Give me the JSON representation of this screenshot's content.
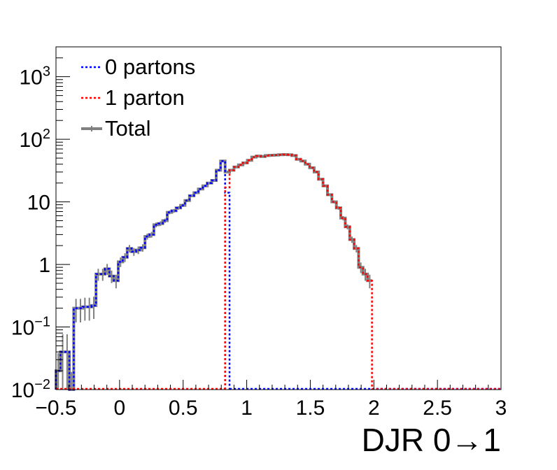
{
  "chart_data": {
    "type": "line",
    "step": true,
    "xlabel": "DJR 0→1",
    "ylabel": "",
    "xlim": [
      -0.5,
      3
    ],
    "ylim": [
      0.01,
      3000
    ],
    "y_scale": "log",
    "grid": false,
    "legend_position": "top-left",
    "x_ticks": [
      {
        "value": -0.5,
        "label": "−0.5"
      },
      {
        "value": 0,
        "label": "0"
      },
      {
        "value": 0.5,
        "label": "0.5"
      },
      {
        "value": 1,
        "label": "1"
      },
      {
        "value": 1.5,
        "label": "1.5"
      },
      {
        "value": 2,
        "label": "2"
      },
      {
        "value": 2.5,
        "label": "2.5"
      },
      {
        "value": 3,
        "label": "3"
      }
    ],
    "y_ticks": [
      {
        "value": 0.01,
        "base": "10",
        "exp": "−2"
      },
      {
        "value": 0.1,
        "base": "10",
        "exp": "−1"
      },
      {
        "value": 1,
        "base": "1",
        "exp": ""
      },
      {
        "value": 10,
        "base": "10",
        "exp": ""
      },
      {
        "value": 100,
        "base": "10",
        "exp": "2"
      },
      {
        "value": 1000,
        "base": "10",
        "exp": "3"
      }
    ],
    "bin_width": 0.035,
    "series": [
      {
        "name": "Total",
        "color": "#808080",
        "style": "solid",
        "x_start": -0.5,
        "values": [
          0.02,
          0.04,
          0.04,
          0.01,
          0.2,
          0.2,
          0.21,
          0.21,
          0.22,
          0.7,
          0.7,
          0.85,
          0.65,
          0.55,
          1.1,
          1.3,
          1.8,
          1.6,
          1.7,
          1.85,
          2.8,
          3.0,
          4.3,
          4.5,
          5.0,
          6.8,
          7.2,
          8.0,
          8.8,
          10.5,
          12.5,
          14.0,
          16.0,
          18.0,
          20.0,
          22.0,
          32.0,
          45.0,
          30.0,
          32.0,
          36.0,
          39.0,
          42.0,
          46.0,
          52.0,
          54.0,
          53.0,
          55.0,
          55.5,
          56.0,
          56.5,
          57.0,
          56.5,
          55.0,
          48.0,
          45.0,
          40.0,
          35.0,
          30.0,
          23.0,
          18.0,
          13.0,
          10.0,
          8.0,
          5.5,
          4.0,
          2.5,
          1.8,
          0.9,
          0.7,
          0.55
        ]
      },
      {
        "name": "0 partons",
        "color": "#0000ff",
        "style": "dotted",
        "x_start": -0.5,
        "values": [
          0.02,
          0.04,
          0.04,
          0.01,
          0.2,
          0.2,
          0.21,
          0.21,
          0.22,
          0.7,
          0.7,
          0.85,
          0.65,
          0.55,
          1.1,
          1.3,
          1.8,
          1.6,
          1.7,
          1.85,
          2.8,
          3.0,
          4.3,
          4.5,
          5.0,
          6.8,
          7.2,
          8.0,
          8.8,
          10.5,
          12.5,
          14.0,
          16.0,
          18.0,
          20.0,
          22.0,
          32.0,
          45.0,
          14.0
        ]
      },
      {
        "name": "1 parton",
        "color": "#ff0000",
        "style": "dotted",
        "x_start": 0.83,
        "values": [
          17.0,
          32.0,
          36.0,
          39.0,
          42.0,
          46.0,
          52.0,
          54.0,
          53.0,
          55.0,
          55.5,
          56.0,
          56.5,
          57.0,
          56.5,
          55.0,
          48.0,
          45.0,
          40.0,
          35.0,
          30.0,
          23.0,
          18.0,
          13.0,
          10.0,
          8.0,
          5.5,
          4.0,
          2.5,
          1.8,
          0.9,
          0.7,
          0.55
        ]
      }
    ]
  },
  "legend": {
    "entries": [
      {
        "label": "0 partons",
        "color": "#0000ff",
        "style": "dotted"
      },
      {
        "label": "1 parton",
        "color": "#ff0000",
        "style": "dotted"
      },
      {
        "label": "Total",
        "color": "#808080",
        "style": "solid"
      }
    ]
  }
}
